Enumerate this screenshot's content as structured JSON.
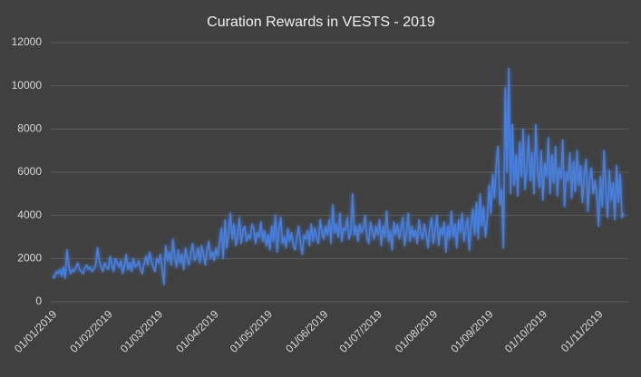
{
  "chart_data": {
    "type": "line",
    "title": "Curation Rewards in VESTS - 2019",
    "categories": [
      "01/01/2019",
      null,
      null,
      null,
      null,
      null,
      null,
      null,
      null,
      null,
      null,
      null,
      null,
      null,
      null,
      null,
      null,
      null,
      null,
      null,
      null,
      null,
      null,
      null,
      null,
      null,
      null,
      null,
      null,
      null,
      null,
      "01/02/2019",
      null,
      null,
      null,
      null,
      null,
      null,
      null,
      null,
      null,
      null,
      null,
      null,
      null,
      null,
      null,
      null,
      null,
      null,
      null,
      null,
      null,
      null,
      null,
      null,
      null,
      null,
      null,
      "01/03/2019",
      null,
      null,
      null,
      null,
      null,
      null,
      null,
      null,
      null,
      null,
      null,
      null,
      null,
      null,
      null,
      null,
      null,
      null,
      null,
      null,
      null,
      null,
      null,
      null,
      null,
      null,
      null,
      null,
      null,
      null,
      "01/04/2019",
      null,
      null,
      null,
      null,
      null,
      null,
      null,
      null,
      null,
      null,
      null,
      null,
      null,
      null,
      null,
      null,
      null,
      null,
      null,
      null,
      null,
      null,
      null,
      null,
      null,
      null,
      null,
      null,
      null,
      "01/05/2019",
      null,
      null,
      null,
      null,
      null,
      null,
      null,
      null,
      null,
      null,
      null,
      null,
      null,
      null,
      null,
      null,
      null,
      null,
      null,
      null,
      null,
      null,
      null,
      null,
      null,
      null,
      null,
      null,
      null,
      null,
      "01/06/2019",
      null,
      null,
      null,
      null,
      null,
      null,
      null,
      null,
      null,
      null,
      null,
      null,
      null,
      null,
      null,
      null,
      null,
      null,
      null,
      null,
      null,
      null,
      null,
      null,
      null,
      null,
      null,
      null,
      null,
      "01/07/2019",
      null,
      null,
      null,
      null,
      null,
      null,
      null,
      null,
      null,
      null,
      null,
      null,
      null,
      null,
      null,
      null,
      null,
      null,
      null,
      null,
      null,
      null,
      null,
      null,
      null,
      null,
      null,
      null,
      null,
      null,
      "01/08/2019",
      null,
      null,
      null,
      null,
      null,
      null,
      null,
      null,
      null,
      null,
      null,
      null,
      null,
      null,
      null,
      null,
      null,
      null,
      null,
      null,
      null,
      null,
      null,
      null,
      null,
      null,
      null,
      null,
      null,
      null,
      "01/09/2019",
      null,
      null,
      null,
      null,
      null,
      null,
      null,
      null,
      null,
      null,
      null,
      null,
      null,
      null,
      null,
      null,
      null,
      null,
      null,
      null,
      null,
      null,
      null,
      null,
      null,
      null,
      null,
      null,
      null,
      "01/10/2019",
      null,
      null,
      null,
      null,
      null,
      null,
      null,
      null,
      null,
      null,
      null,
      null,
      null,
      null,
      null,
      null,
      null,
      null,
      null,
      null,
      null,
      null,
      null,
      null,
      null,
      null,
      null,
      null,
      null,
      null,
      "01/11/2019",
      null,
      null,
      null,
      null,
      null,
      null,
      null,
      null,
      null,
      null,
      null,
      null,
      null,
      null
    ],
    "values": [
      1200,
      1100,
      1400,
      1300,
      1500,
      1200,
      1600,
      1100,
      2400,
      1700,
      1300,
      1500,
      1400,
      1600,
      1800,
      1500,
      1400,
      1300,
      1600,
      1700,
      1500,
      1600,
      1400,
      1500,
      1700,
      2500,
      1900,
      1600,
      1400,
      1800,
      1600,
      1500,
      2100,
      1700,
      1400,
      2000,
      1800,
      1600,
      1900,
      1300,
      1700,
      2200,
      1500,
      1800,
      1400,
      2000,
      1600,
      1700,
      1900,
      1500,
      1300,
      1800,
      2100,
      1700,
      2300,
      1900,
      1600,
      1400,
      2000,
      1800,
      2200,
      1500,
      800,
      2600,
      1900,
      2300,
      1700,
      2900,
      2100,
      1600,
      2400,
      1800,
      2200,
      1500,
      2500,
      2000,
      1700,
      2300,
      2700,
      1900,
      2100,
      2500,
      1800,
      2600,
      2200,
      1700,
      2400,
      2800,
      2000,
      2300,
      1900,
      2500,
      2100,
      2800,
      3400,
      2000,
      3800,
      2500,
      3200,
      4100,
      2900,
      3600,
      2600,
      3000,
      3900,
      2700,
      3300,
      3500,
      2800,
      3100,
      2900,
      3600,
      3400,
      2700,
      3200,
      3000,
      3700,
      2800,
      3300,
      2600,
      3100,
      2400,
      3500,
      2800,
      4000,
      2300,
      3300,
      3900,
      2700,
      3000,
      2500,
      3400,
      2800,
      3200,
      2600,
      2400,
      3000,
      3500,
      2700,
      2200,
      3100,
      2900,
      3300,
      2600,
      3600,
      2800,
      3400,
      3000,
      2700,
      3800,
      3200,
      2900,
      3500,
      3100,
      3800,
      2700,
      4500,
      3200,
      3600,
      3000,
      4100,
      2800,
      3400,
      3300,
      3900,
      2900,
      3200,
      5000,
      3100,
      3500,
      2800,
      3600,
      3200,
      3400,
      4000,
      3000,
      2700,
      3700,
      3300,
      2900,
      3500,
      3100,
      3800,
      2600,
      3500,
      3000,
      4200,
      2800,
      3300,
      2400,
      3700,
      3100,
      3600,
      2900,
      3400,
      3900,
      2600,
      3200,
      4100,
      2800,
      3500,
      3000,
      3300,
      2700,
      3800,
      3200,
      2900,
      3600,
      3100,
      2500,
      3400,
      3900,
      2700,
      3300,
      4000,
      2600,
      3400,
      3100,
      3700,
      2300,
      3500,
      2900,
      4200,
      3000,
      3600,
      2500,
      3800,
      3200,
      4100,
      2800,
      3400,
      3900,
      2400,
      3600,
      4300,
      3100,
      4600,
      2900,
      5000,
      3500,
      4400,
      3000,
      3800,
      5400,
      4100,
      5900,
      4800,
      6400,
      7200,
      4500,
      5200,
      2500,
      9900,
      6000,
      10800,
      5000,
      8200,
      5400,
      6800,
      4900,
      7400,
      5800,
      8000,
      5200,
      6200,
      7700,
      5600,
      6900,
      5000,
      8200,
      6100,
      5300,
      7000,
      4700,
      6400,
      5800,
      7600,
      5000,
      6800,
      5500,
      7200,
      4900,
      6200,
      5700,
      7500,
      4400,
      6000,
      5600,
      6900,
      4800,
      6500,
      5100,
      7000,
      5400,
      6300,
      4600,
      5900,
      6600,
      4200,
      5700,
      6200,
      5000,
      5600,
      4900,
      3500,
      5800,
      4400,
      7000,
      5200,
      3900,
      6100,
      4700,
      5500,
      3800,
      6300,
      4600,
      5900,
      3900,
      4100
    ],
    "color": "#4a7fdc",
    "ylim": [
      0,
      12000
    ],
    "yticks": [
      0,
      2000,
      4000,
      6000,
      8000,
      10000,
      12000
    ],
    "grid": true
  }
}
